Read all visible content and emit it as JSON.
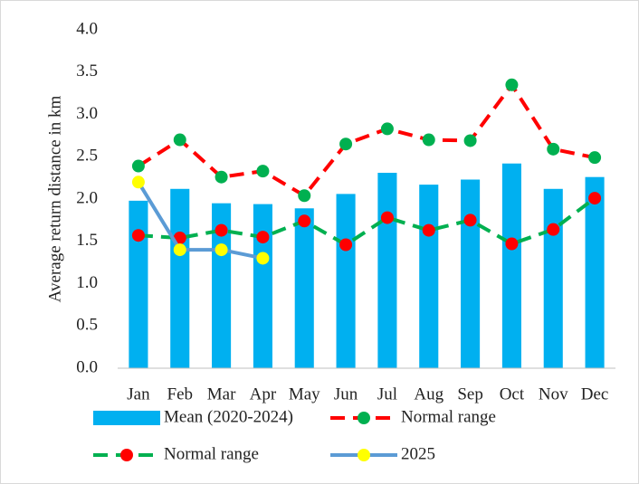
{
  "chart_data": {
    "type": "bar_line",
    "y_label": "Average return distance in km",
    "categories": [
      "Jan",
      "Feb",
      "Mar",
      "Apr",
      "May",
      "Jun",
      "Jul",
      "Aug",
      "Sep",
      "Oct",
      "Nov",
      "Dec"
    ],
    "series": [
      {
        "name": "Mean (2020-2024)",
        "type": "bar",
        "color": "#00b0f0",
        "values": [
          1.98,
          2.12,
          1.95,
          1.94,
          1.89,
          2.06,
          2.31,
          2.17,
          2.23,
          2.42,
          2.12,
          2.26
        ]
      },
      {
        "name": "Normal range",
        "type": "line",
        "color": "#ff0000",
        "marker_color": "#00b050",
        "dashed": true,
        "values": [
          2.39,
          2.7,
          2.26,
          2.33,
          2.04,
          2.65,
          2.83,
          2.7,
          2.69,
          3.35,
          2.59,
          2.49
        ]
      },
      {
        "name": "Normal range",
        "type": "line",
        "color": "#00b050",
        "marker_color": "#ff0000",
        "dashed": true,
        "values": [
          1.57,
          1.54,
          1.63,
          1.55,
          1.74,
          1.46,
          1.78,
          1.63,
          1.75,
          1.47,
          1.64,
          2.01
        ]
      },
      {
        "name": "2025",
        "type": "line",
        "color": "#5b9bd5",
        "marker_color": "#ffff00",
        "dashed": false,
        "values": [
          2.2,
          1.4,
          1.4,
          1.3,
          null,
          null,
          null,
          null,
          null,
          null,
          null,
          null
        ]
      }
    ],
    "ylim": [
      0,
      4
    ],
    "yticks": [
      {
        "value": 0,
        "label": "0.0"
      },
      0.5,
      {
        "value": 1,
        "label": "1.0"
      },
      1.5,
      {
        "value": 2,
        "label": "2.0"
      },
      2.5,
      {
        "value": 3,
        "label": "3.0"
      },
      3.5,
      {
        "value": 4,
        "label": "4.0"
      }
    ],
    "grid": false,
    "legend": "bottom"
  }
}
